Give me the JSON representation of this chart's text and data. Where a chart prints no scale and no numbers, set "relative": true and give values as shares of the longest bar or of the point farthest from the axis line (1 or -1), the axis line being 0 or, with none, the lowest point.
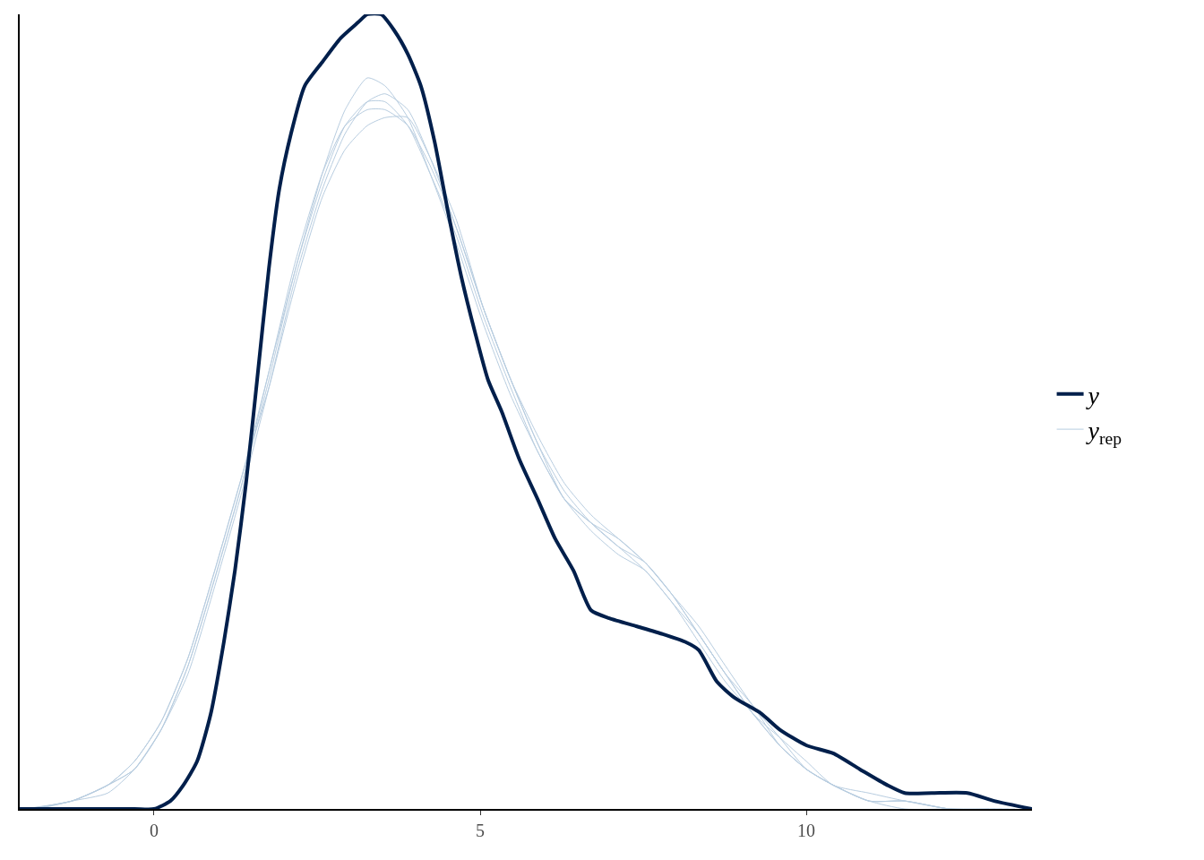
{
  "chart_data": {
    "type": "line",
    "relative": true,
    "xlim": [
      -2.06,
      13.46
    ],
    "xticks": [
      0,
      5,
      10
    ],
    "legend": "right",
    "series": [
      {
        "name": "y",
        "color": "#011f4b",
        "x": [
          -2.06,
          -0.3,
          0,
          0.25,
          0.45,
          0.66,
          0.87,
          1.07,
          1.24,
          1.41,
          1.58,
          1.76,
          1.92,
          2.1,
          2.31,
          2.58,
          2.86,
          3.13,
          3.27,
          3.48,
          3.68,
          3.89,
          4.09,
          4.3,
          4.51,
          4.71,
          4.92,
          5.12,
          5.33,
          5.6,
          5.88,
          6.15,
          6.43,
          6.7,
          6.98,
          7.39,
          7.8,
          8.15,
          8.35,
          8.63,
          8.9,
          9.31,
          9.59,
          10.0,
          10.41,
          10.82,
          11.24,
          11.51,
          11.92,
          12.47,
          12.88,
          13.46
        ],
        "values": [
          0,
          0,
          0,
          0.01,
          0.03,
          0.06,
          0.12,
          0.21,
          0.3,
          0.41,
          0.54,
          0.68,
          0.78,
          0.85,
          0.91,
          0.94,
          0.97,
          0.99,
          1,
          1,
          0.98,
          0.95,
          0.91,
          0.84,
          0.75,
          0.67,
          0.6,
          0.54,
          0.5,
          0.44,
          0.39,
          0.34,
          0.3,
          0.25,
          0.24,
          0.23,
          0.22,
          0.21,
          0.2,
          0.16,
          0.14,
          0.12,
          0.1,
          0.08,
          0.07,
          0.05,
          0.03,
          0.02,
          0.02,
          0.02,
          0.01,
          0
        ]
      },
      {
        "name": "y$_{rep}$",
        "color": "#b8cde0",
        "x": [
          -2.0,
          -1.26,
          -0.71,
          -0.3,
          0.11,
          0.52,
          0.93,
          1.35,
          1.76,
          2.17,
          2.58,
          2.93,
          3.27,
          3.54,
          3.89,
          4.23,
          4.64,
          5.05,
          5.47,
          5.88,
          6.29,
          6.7,
          7.12,
          7.53,
          7.94,
          8.35,
          8.76,
          9.18,
          9.59,
          10.0,
          10.41,
          10.96,
          11.51,
          12.2,
          12.9
        ],
        "values": [
          0,
          0.01,
          0.03,
          0.05,
          0.1,
          0.18,
          0.29,
          0.41,
          0.54,
          0.68,
          0.79,
          0.86,
          0.89,
          0.89,
          0.86,
          0.8,
          0.72,
          0.62,
          0.53,
          0.45,
          0.39,
          0.35,
          0.32,
          0.3,
          0.26,
          0.22,
          0.17,
          0.13,
          0.08,
          0.05,
          0.03,
          0.01,
          0.01,
          0,
          0
        ]
      },
      {
        "color": "#b8cde0",
        "x": [
          -1.95,
          -1.26,
          -0.71,
          -0.3,
          0.11,
          0.52,
          0.93,
          1.35,
          1.76,
          2.17,
          2.58,
          2.93,
          3.27,
          3.54,
          3.89,
          4.23,
          4.64,
          5.05,
          5.47,
          5.88,
          6.29,
          6.7,
          7.12,
          7.53,
          7.94,
          8.35,
          8.76,
          9.18,
          9.59,
          10.0,
          10.41,
          10.96,
          11.51,
          12.2,
          13.0
        ],
        "values": [
          0,
          0.01,
          0.03,
          0.05,
          0.1,
          0.18,
          0.29,
          0.41,
          0.55,
          0.68,
          0.8,
          0.88,
          0.92,
          0.91,
          0.87,
          0.8,
          0.71,
          0.61,
          0.52,
          0.45,
          0.39,
          0.36,
          0.33,
          0.3,
          0.26,
          0.21,
          0.16,
          0.12,
          0.08,
          0.05,
          0.03,
          0.01,
          0.01,
          0,
          0
        ]
      },
      {
        "color": "#b8cde0",
        "x": [
          -1.9,
          -1.26,
          -0.71,
          -0.3,
          0.11,
          0.52,
          0.93,
          1.35,
          1.76,
          2.17,
          2.58,
          2.93,
          3.27,
          3.54,
          3.89,
          4.23,
          4.64,
          5.05,
          5.47,
          5.88,
          6.29,
          6.7,
          7.12,
          7.53,
          7.94,
          8.35,
          8.76,
          9.18,
          9.59,
          10.0,
          10.41,
          10.96,
          11.51,
          12.2,
          13.1
        ],
        "values": [
          0,
          0.01,
          0.03,
          0.06,
          0.11,
          0.19,
          0.3,
          0.42,
          0.53,
          0.66,
          0.77,
          0.83,
          0.86,
          0.87,
          0.87,
          0.82,
          0.74,
          0.63,
          0.54,
          0.46,
          0.4,
          0.36,
          0.33,
          0.31,
          0.27,
          0.22,
          0.17,
          0.12,
          0.09,
          0.06,
          0.03,
          0.02,
          0.01,
          0,
          0
        ]
      },
      {
        "color": "#b8cde0",
        "x": [
          -1.85,
          -1.26,
          -0.71,
          -0.3,
          0.11,
          0.52,
          0.93,
          1.35,
          1.76,
          2.17,
          2.58,
          2.93,
          3.27,
          3.54,
          3.89,
          4.23,
          4.64,
          5.05,
          5.47,
          5.88,
          6.29,
          6.7,
          7.12,
          7.53,
          7.94,
          8.35,
          8.76,
          9.18,
          9.59,
          10.0,
          10.41,
          10.96,
          11.51,
          12.2,
          13.2
        ],
        "values": [
          0,
          0.01,
          0.02,
          0.05,
          0.1,
          0.17,
          0.28,
          0.4,
          0.53,
          0.67,
          0.78,
          0.85,
          0.89,
          0.9,
          0.88,
          0.82,
          0.73,
          0.63,
          0.54,
          0.47,
          0.41,
          0.37,
          0.34,
          0.31,
          0.27,
          0.23,
          0.18,
          0.13,
          0.09,
          0.05,
          0.03,
          0.01,
          0.01,
          0,
          0
        ]
      },
      {
        "color": "#b8cde0",
        "x": [
          -1.8,
          -1.26,
          -0.71,
          -0.3,
          0.11,
          0.52,
          0.93,
          1.35,
          1.76,
          2.17,
          2.58,
          2.93,
          3.27,
          3.54,
          3.89,
          4.23,
          4.64,
          5.05,
          5.47,
          5.88,
          6.29,
          6.7,
          7.12,
          7.53,
          7.94,
          8.35,
          8.76,
          9.18,
          9.59,
          10.0,
          10.41,
          10.96,
          11.51,
          12.2,
          12.8
        ],
        "values": [
          0,
          0.01,
          0.03,
          0.06,
          0.11,
          0.19,
          0.3,
          0.42,
          0.55,
          0.69,
          0.8,
          0.86,
          0.88,
          0.88,
          0.86,
          0.81,
          0.73,
          0.63,
          0.54,
          0.46,
          0.39,
          0.36,
          0.34,
          0.31,
          0.27,
          0.22,
          0.17,
          0.12,
          0.08,
          0.05,
          0.03,
          0.01,
          0,
          0,
          0
        ]
      }
    ]
  }
}
